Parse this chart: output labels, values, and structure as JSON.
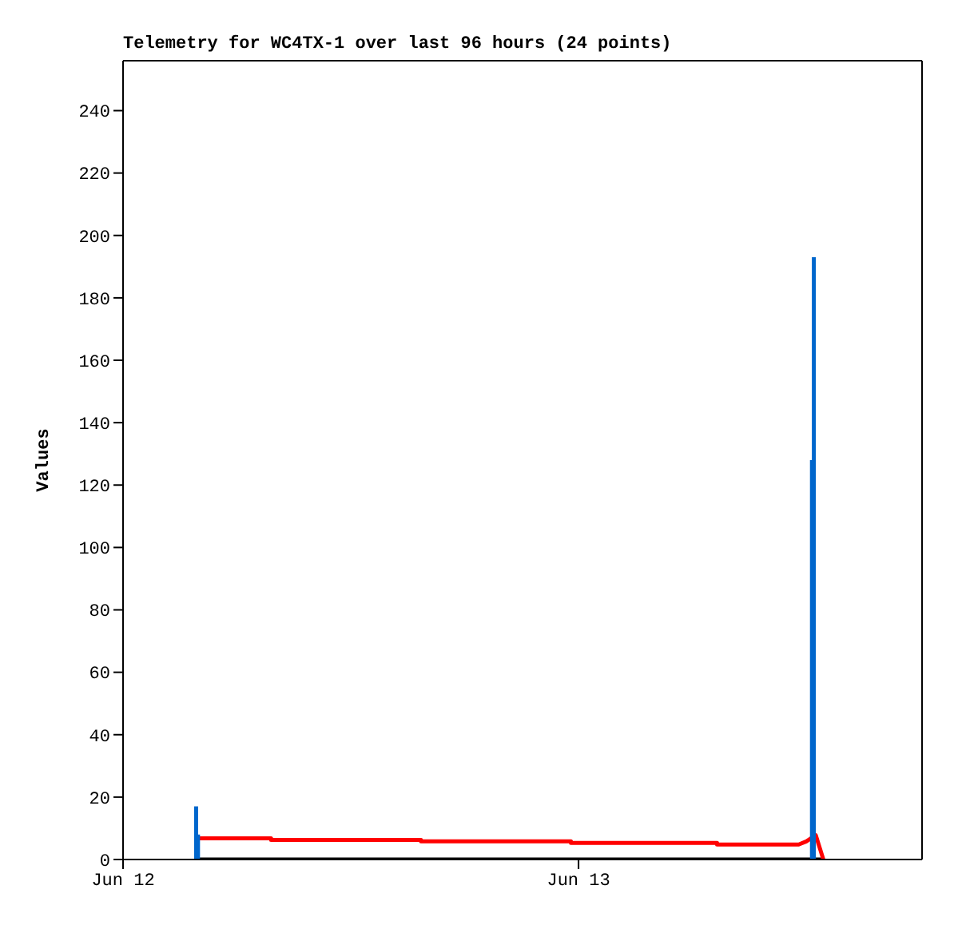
{
  "chart_data": {
    "type": "line",
    "title": "Telemetry for WC4TX-1 over last 96 hours (24 points)",
    "ylabel": "Values",
    "xlim": [
      "--06-12",
      "--06-13T18:06"
    ],
    "xticks": [
      {
        "value": "--06-12",
        "label": "Jun 12"
      },
      {
        "value": "--06-13",
        "label": "Jun 13"
      }
    ],
    "ylim": [
      0,
      256
    ],
    "yticks": [
      0,
      20,
      40,
      60,
      80,
      100,
      120,
      140,
      160,
      180,
      200,
      220,
      240
    ],
    "marker": "none",
    "line_style": "solid",
    "series": [
      {
        "color": "#000000",
        "x": [
          "--06-12T03:51",
          "--06-13T12:54"
        ],
        "values": [
          0,
          0
        ]
      },
      {
        "color": "#ff0000",
        "x": [
          "--06-12T03:51",
          "--06-12T07:48",
          "--06-12T07:48",
          "--06-12T15:42",
          "--06-12T15:42",
          "--06-12T23:36",
          "--06-12T23:36",
          "--06-13T07:18",
          "--06-13T07:18",
          "--06-13T11:36",
          "--06-13T12:00",
          "--06-13T12:30",
          "--06-13T12:54"
        ],
        "values": [
          6.8,
          6.8,
          6.3,
          6.3,
          5.8,
          5.8,
          5.3,
          5.3,
          4.8,
          4.8,
          5.8,
          7.8,
          0
        ]
      },
      {
        "color": "#0066cc",
        "x": [
          "--06-12T03:51",
          "--06-12T03:51",
          "--06-12T03:57",
          "--06-12T03:57",
          "--06-12T03:58",
          "--06-13T12:18",
          "--06-13T12:18",
          "--06-13T12:24",
          "--06-13T12:24"
        ],
        "values": [
          17,
          0,
          0,
          8,
          null,
          128,
          0,
          0,
          193
        ]
      }
    ]
  }
}
